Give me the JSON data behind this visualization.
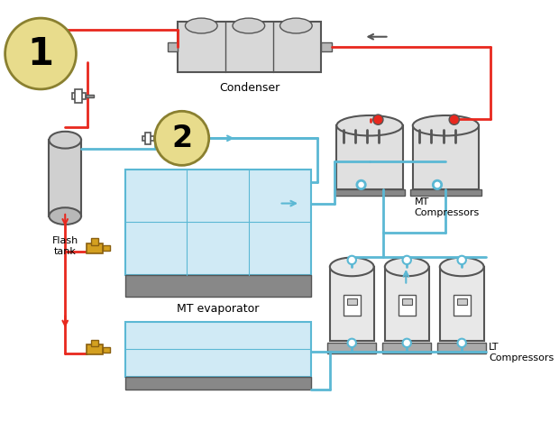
{
  "bg_color": "#ffffff",
  "red_color": "#e8281e",
  "blue_color": "#5bb8d4",
  "dark_gray": "#555555",
  "light_gray": "#aaaaaa",
  "yellow_circle_color": "#e8dc8c",
  "component_gray": "#cccccc",
  "component_dark": "#888888",
  "glass_color": "#d0eaf5",
  "glass_border": "#5bb8d4",
  "evap_gray": "#999999",
  "gold_color": "#d4a020",
  "labels": {
    "circle1": "1",
    "circle2": "2",
    "condenser": "Condenser",
    "flash_tank": "Flash\ntank",
    "mt_compressors": "MT\nCompressors",
    "lt_compressors": "LT\nCompressors",
    "mt_evaporator": "MT evaporator"
  }
}
